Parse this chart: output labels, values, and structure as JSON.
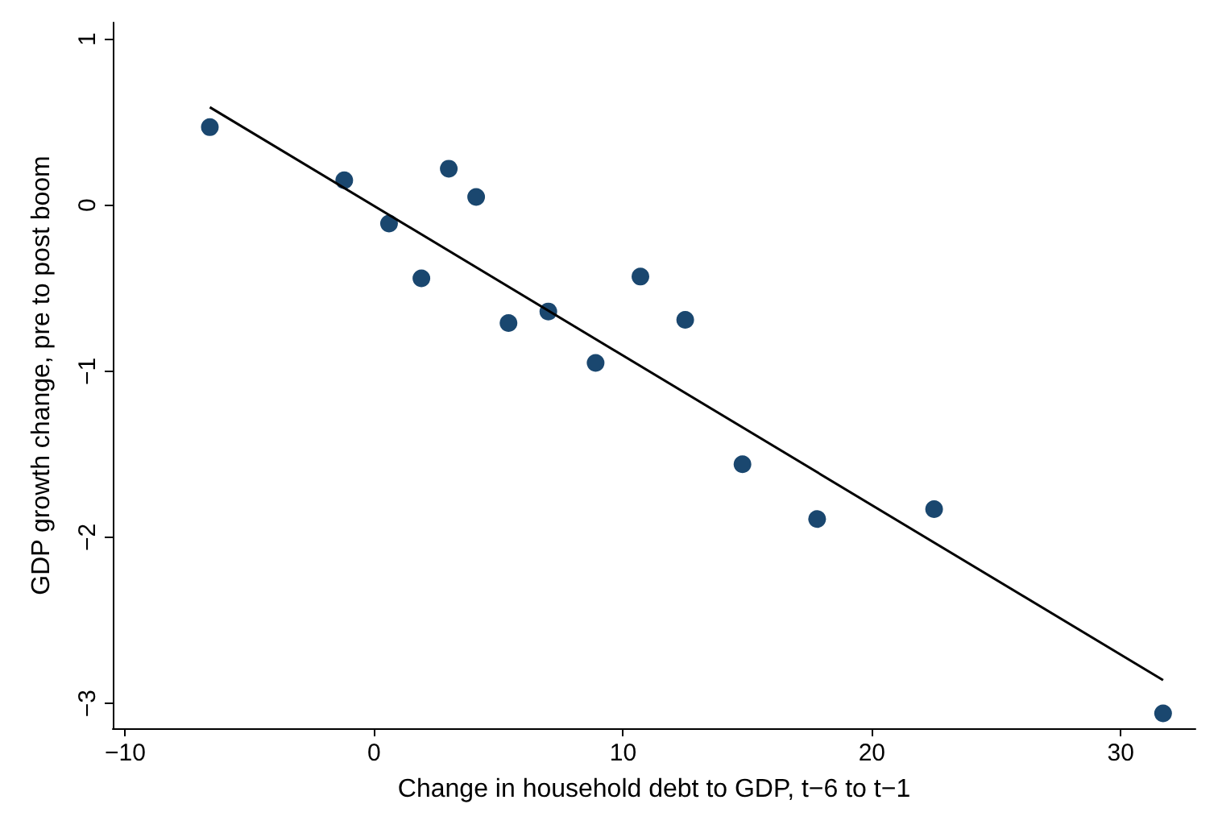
{
  "chart_data": {
    "type": "scatter",
    "xlabel": "Change in household debt to GDP, t−6 to t−1",
    "ylabel": "GDP growth change, pre to post boom",
    "xlim": [
      -10.5,
      33
    ],
    "xticks": [
      -10,
      0,
      10,
      20,
      30
    ],
    "ylim": [
      -3.15,
      1.1
    ],
    "yticks": [
      -3,
      -2,
      -1,
      0,
      1
    ],
    "marker": "circle",
    "series": [
      {
        "color": "#1a476f",
        "x": [
          -6.6,
          -1.2,
          0.6,
          1.9,
          3.0,
          4.1,
          5.4,
          7.0,
          8.9,
          10.7,
          12.5,
          14.8,
          17.8,
          22.5,
          31.7
        ],
        "values": [
          0.47,
          0.15,
          -0.11,
          -0.44,
          0.22,
          0.05,
          -0.71,
          -0.64,
          -0.95,
          -0.43,
          -0.69,
          -1.56,
          -1.89,
          -1.83,
          -3.06
        ]
      },
      {
        "type": "line",
        "color": "#000000",
        "marker": "none",
        "line_style": "solid",
        "x": [
          -6.6,
          31.7
        ],
        "values": [
          0.59,
          -2.86
        ]
      }
    ]
  }
}
